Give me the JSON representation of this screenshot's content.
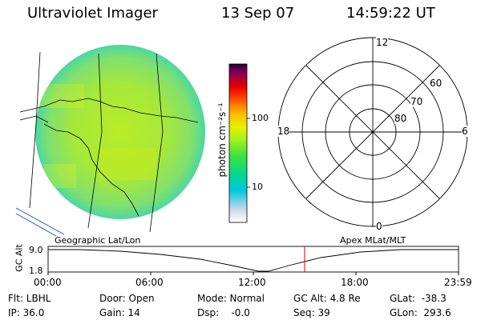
{
  "header": {
    "instrument": "Ultraviolet Imager",
    "date": "13 Sep 07",
    "time": "14:59:22 UT"
  },
  "colorbar": {
    "unit_label": "photon cm⁻²s⁻¹",
    "ticks": [
      "100",
      "10"
    ],
    "colors": [
      "#ffffff",
      "#cfd8e8",
      "#00c8e0",
      "#00d890",
      "#40e040",
      "#a0f020",
      "#e8f000",
      "#ffc000",
      "#ff8000",
      "#ff3000",
      "#e00000",
      "#a00040",
      "#600060",
      "#200020"
    ]
  },
  "polar": {
    "mlt_labels": {
      "top": "12",
      "left": "18",
      "right": "6",
      "bottom": "0"
    },
    "lat_labels": [
      "60",
      "70",
      "80"
    ]
  },
  "timeline": {
    "y_axis_label": "GC Alt",
    "y_ticks": [
      "9.0",
      "1.8"
    ],
    "left_caption": "Geographic Lat/Lon",
    "right_caption": "Apex MLat/MLT",
    "x_ticks": [
      "00:00",
      "06:00",
      "12:00",
      "18:00",
      "23:59"
    ],
    "current_time_fraction": 0.625,
    "marker_color": "#e00000"
  },
  "status": {
    "filter": "Flt: LBHL",
    "ip": "IP: 36.0",
    "door": "Door: Open",
    "gain": "Gain: 14",
    "mode": "Mode: Normal",
    "dsp": "Dsp:    -0.0",
    "gc_alt": "GC Alt: 4.8 Re",
    "seq": "Seq: 39",
    "glat": "GLat:  -38.3",
    "glon": "GLon:  293.6"
  }
}
